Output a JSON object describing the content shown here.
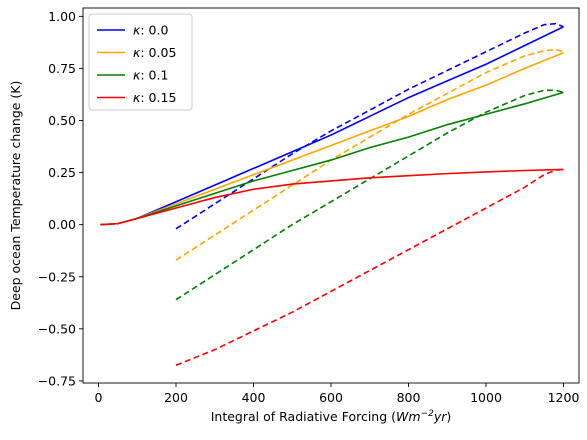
{
  "chart_data": {
    "type": "line",
    "title": "",
    "xlabel": "Integral of Radiative Forcing (Wm^-2 yr)",
    "xlabel_parts": {
      "main": "Integral of Radiative Forcing (",
      "w": "Wm",
      "sup": "−2",
      "yr": "yr",
      "close": ")"
    },
    "ylabel": "Deep ocean Temperature change (K)",
    "xlim": [
      -40,
      1240
    ],
    "ylim": [
      -0.76,
      1.04
    ],
    "xticks": [
      0,
      200,
      400,
      600,
      800,
      1000,
      1200
    ],
    "xtick_labels": [
      "0",
      "200",
      "400",
      "600",
      "800",
      "1000",
      "1200"
    ],
    "yticks": [
      -0.75,
      -0.5,
      -0.25,
      0.0,
      0.25,
      0.5,
      0.75,
      1.0
    ],
    "ytick_labels": [
      "−0.75",
      "−0.50",
      "−0.25",
      "0.00",
      "0.25",
      "0.50",
      "0.75",
      "1.00"
    ],
    "grid": false,
    "legend_position": "top-left",
    "legend_symbol": "κ",
    "series": [
      {
        "name": ": 0.0",
        "color": "#0000ff",
        "solid": {
          "x": [
            5,
            50,
            100,
            200,
            300,
            400,
            500,
            600,
            700,
            800,
            900,
            1000,
            1100,
            1200
          ],
          "y": [
            0.0,
            0.005,
            0.03,
            0.11,
            0.19,
            0.27,
            0.35,
            0.43,
            0.52,
            0.61,
            0.69,
            0.77,
            0.86,
            0.95
          ]
        },
        "dashed": {
          "x": [
            200,
            300,
            400,
            500,
            600,
            700,
            800,
            900,
            1000,
            1100,
            1150,
            1180,
            1200
          ],
          "y": [
            -0.02,
            0.1,
            0.22,
            0.34,
            0.45,
            0.55,
            0.65,
            0.74,
            0.83,
            0.92,
            0.96,
            0.965,
            0.95
          ]
        }
      },
      {
        "name": ": 0.05",
        "color": "#ffa500",
        "solid": {
          "x": [
            5,
            50,
            100,
            200,
            300,
            400,
            500,
            600,
            700,
            800,
            900,
            1000,
            1100,
            1200
          ],
          "y": [
            0.0,
            0.005,
            0.03,
            0.1,
            0.17,
            0.24,
            0.31,
            0.38,
            0.45,
            0.52,
            0.6,
            0.67,
            0.75,
            0.825
          ]
        },
        "dashed": {
          "x": [
            200,
            300,
            400,
            500,
            600,
            700,
            800,
            900,
            1000,
            1100,
            1150,
            1180,
            1200
          ],
          "y": [
            -0.17,
            -0.05,
            0.07,
            0.19,
            0.31,
            0.42,
            0.53,
            0.63,
            0.73,
            0.81,
            0.835,
            0.84,
            0.83
          ]
        }
      },
      {
        "name": ": 0.1",
        "color": "#008000",
        "solid": {
          "x": [
            5,
            50,
            100,
            200,
            300,
            400,
            500,
            600,
            700,
            800,
            900,
            1000,
            1100,
            1200
          ],
          "y": [
            0.0,
            0.005,
            0.03,
            0.09,
            0.15,
            0.21,
            0.26,
            0.31,
            0.37,
            0.42,
            0.48,
            0.53,
            0.58,
            0.635
          ]
        },
        "dashed": {
          "x": [
            200,
            300,
            400,
            500,
            600,
            700,
            800,
            900,
            1000,
            1100,
            1150,
            1180,
            1200
          ],
          "y": [
            -0.36,
            -0.24,
            -0.12,
            0.0,
            0.11,
            0.22,
            0.33,
            0.44,
            0.54,
            0.62,
            0.645,
            0.645,
            0.635
          ]
        }
      },
      {
        "name": ": 0.15",
        "color": "#ff0000",
        "solid": {
          "x": [
            5,
            50,
            100,
            200,
            300,
            400,
            500,
            600,
            700,
            800,
            900,
            1000,
            1100,
            1200
          ],
          "y": [
            0.0,
            0.005,
            0.03,
            0.08,
            0.13,
            0.17,
            0.195,
            0.21,
            0.225,
            0.235,
            0.245,
            0.253,
            0.26,
            0.265
          ]
        },
        "dashed": {
          "x": [
            200,
            300,
            400,
            500,
            600,
            700,
            800,
            900,
            1000,
            1100,
            1150,
            1180,
            1200
          ],
          "y": [
            -0.675,
            -0.6,
            -0.51,
            -0.42,
            -0.32,
            -0.22,
            -0.12,
            -0.02,
            0.08,
            0.18,
            0.24,
            0.262,
            0.265
          ]
        }
      }
    ]
  }
}
